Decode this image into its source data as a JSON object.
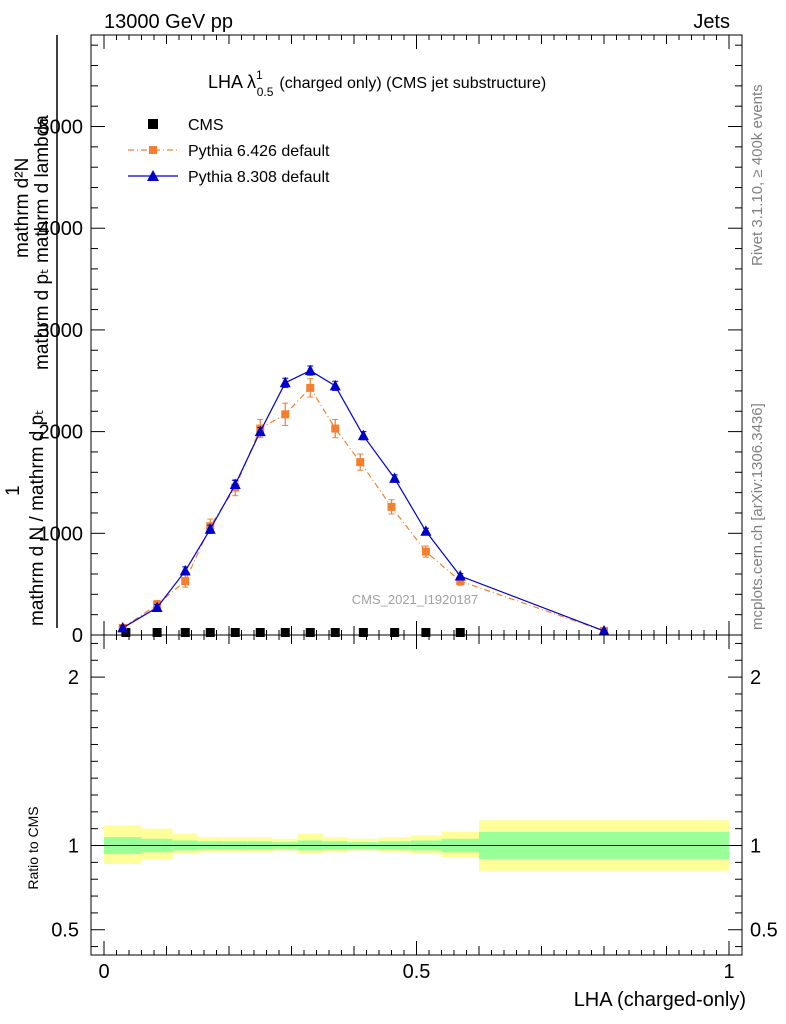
{
  "header": {
    "left": "13000 GeV pp",
    "right": "Jets"
  },
  "side_text": {
    "rivet": "Rivet 3.1.10, ≥ 400k events",
    "mcplots": "mcplots.cern.ch [arXiv:1306.3436]"
  },
  "chart_data": [
    {
      "type": "line",
      "panel": "main",
      "title": "LHA λ",
      "title_sup": "1",
      "title_sub": "0.5",
      "title_suffix": "(charged only) (CMS jet substructure)",
      "watermark": "CMS_2021_I1920187",
      "ylabel_line1": "mathrm d²N",
      "ylabel_line2": "mathrm d pₜ mathrm d lambda",
      "ylabel_num": "1",
      "ylabel_den": "mathrm d N / mathrm d pₜ",
      "xlim": [
        0,
        1
      ],
      "ylim": [
        0,
        5900
      ],
      "yticks": [
        0,
        1000,
        2000,
        3000,
        4000,
        5000
      ],
      "ytick_labels": [
        "0",
        "1000",
        "2000",
        "3000",
        "4000",
        "5000"
      ],
      "legend_position": "top-left",
      "series": [
        {
          "name": "CMS",
          "color": "#000000",
          "marker": "square",
          "x": [
            0.035,
            0.085,
            0.13,
            0.17,
            0.21,
            0.25,
            0.29,
            0.33,
            0.37,
            0.415,
            0.465,
            0.515,
            0.57
          ],
          "values": [
            0,
            0,
            0,
            0,
            0,
            0,
            0,
            0,
            0,
            0,
            0,
            0,
            0
          ]
        },
        {
          "name": "Pythia 6.426 default",
          "color": "#f57f2f",
          "marker": "square",
          "line": "dashdot",
          "x": [
            0.03,
            0.085,
            0.13,
            0.17,
            0.21,
            0.25,
            0.29,
            0.33,
            0.37,
            0.41,
            0.46,
            0.515,
            0.57,
            0.8
          ],
          "values": [
            70,
            300,
            530,
            1070,
            1450,
            2030,
            2170,
            2430,
            2030,
            1700,
            1260,
            820,
            530,
            40
          ],
          "errors": [
            30,
            40,
            60,
            70,
            80,
            90,
            110,
            90,
            90,
            80,
            70,
            55,
            40,
            10
          ]
        },
        {
          "name": "Pythia 8.308 default",
          "color": "#0000cc",
          "marker": "triangle",
          "line": "solid",
          "x": [
            0.03,
            0.085,
            0.13,
            0.17,
            0.21,
            0.25,
            0.29,
            0.33,
            0.37,
            0.415,
            0.465,
            0.515,
            0.57,
            0.8
          ],
          "values": [
            70,
            270,
            630,
            1040,
            1480,
            2000,
            2480,
            2600,
            2450,
            1960,
            1540,
            1020,
            580,
            40
          ],
          "errors": [
            20,
            30,
            40,
            40,
            40,
            40,
            45,
            45,
            45,
            40,
            35,
            30,
            25,
            10
          ]
        }
      ]
    },
    {
      "type": "area",
      "panel": "ratio",
      "ylabel": "Ratio to CMS",
      "xlabel": "LHA (charged-only)",
      "xlim": [
        0,
        1
      ],
      "ylim": [
        0.35,
        2.25
      ],
      "reference_line": 1,
      "xticks": [
        0,
        0.5,
        1
      ],
      "xtick_labels": [
        "0",
        "0.5",
        "1"
      ],
      "yticks": [
        0.5,
        1,
        2
      ],
      "ytick_labels": [
        "0.5",
        "1",
        "2"
      ],
      "bins": [
        {
          "x0": 0.0,
          "x1": 0.06,
          "stat_lo": 0.95,
          "stat_hi": 1.05,
          "tot_lo": 0.89,
          "tot_hi": 1.12
        },
        {
          "x0": 0.06,
          "x1": 0.11,
          "stat_lo": 0.96,
          "stat_hi": 1.04,
          "tot_lo": 0.92,
          "tot_hi": 1.1
        },
        {
          "x0": 0.11,
          "x1": 0.15,
          "stat_lo": 0.97,
          "stat_hi": 1.03,
          "tot_lo": 0.95,
          "tot_hi": 1.07
        },
        {
          "x0": 0.15,
          "x1": 0.19,
          "stat_lo": 0.975,
          "stat_hi": 1.025,
          "tot_lo": 0.96,
          "tot_hi": 1.05
        },
        {
          "x0": 0.19,
          "x1": 0.23,
          "stat_lo": 0.975,
          "stat_hi": 1.025,
          "tot_lo": 0.96,
          "tot_hi": 1.05
        },
        {
          "x0": 0.23,
          "x1": 0.27,
          "stat_lo": 0.975,
          "stat_hi": 1.025,
          "tot_lo": 0.96,
          "tot_hi": 1.05
        },
        {
          "x0": 0.27,
          "x1": 0.31,
          "stat_lo": 0.98,
          "stat_hi": 1.02,
          "tot_lo": 0.97,
          "tot_hi": 1.04
        },
        {
          "x0": 0.31,
          "x1": 0.35,
          "stat_lo": 0.97,
          "stat_hi": 1.03,
          "tot_lo": 0.95,
          "tot_hi": 1.07
        },
        {
          "x0": 0.35,
          "x1": 0.39,
          "stat_lo": 0.975,
          "stat_hi": 1.025,
          "tot_lo": 0.96,
          "tot_hi": 1.05
        },
        {
          "x0": 0.39,
          "x1": 0.44,
          "stat_lo": 0.98,
          "stat_hi": 1.02,
          "tot_lo": 0.97,
          "tot_hi": 1.04
        },
        {
          "x0": 0.44,
          "x1": 0.49,
          "stat_lo": 0.975,
          "stat_hi": 1.025,
          "tot_lo": 0.96,
          "tot_hi": 1.05
        },
        {
          "x0": 0.49,
          "x1": 0.54,
          "stat_lo": 0.97,
          "stat_hi": 1.03,
          "tot_lo": 0.95,
          "tot_hi": 1.06
        },
        {
          "x0": 0.54,
          "x1": 0.6,
          "stat_lo": 0.96,
          "stat_hi": 1.04,
          "tot_lo": 0.93,
          "tot_hi": 1.08
        },
        {
          "x0": 0.6,
          "x1": 1.0,
          "stat_lo": 0.92,
          "stat_hi": 1.08,
          "tot_lo": 0.85,
          "tot_hi": 1.15
        }
      ],
      "colors": {
        "stat": "#99ff99",
        "total": "#ffff99"
      }
    }
  ]
}
